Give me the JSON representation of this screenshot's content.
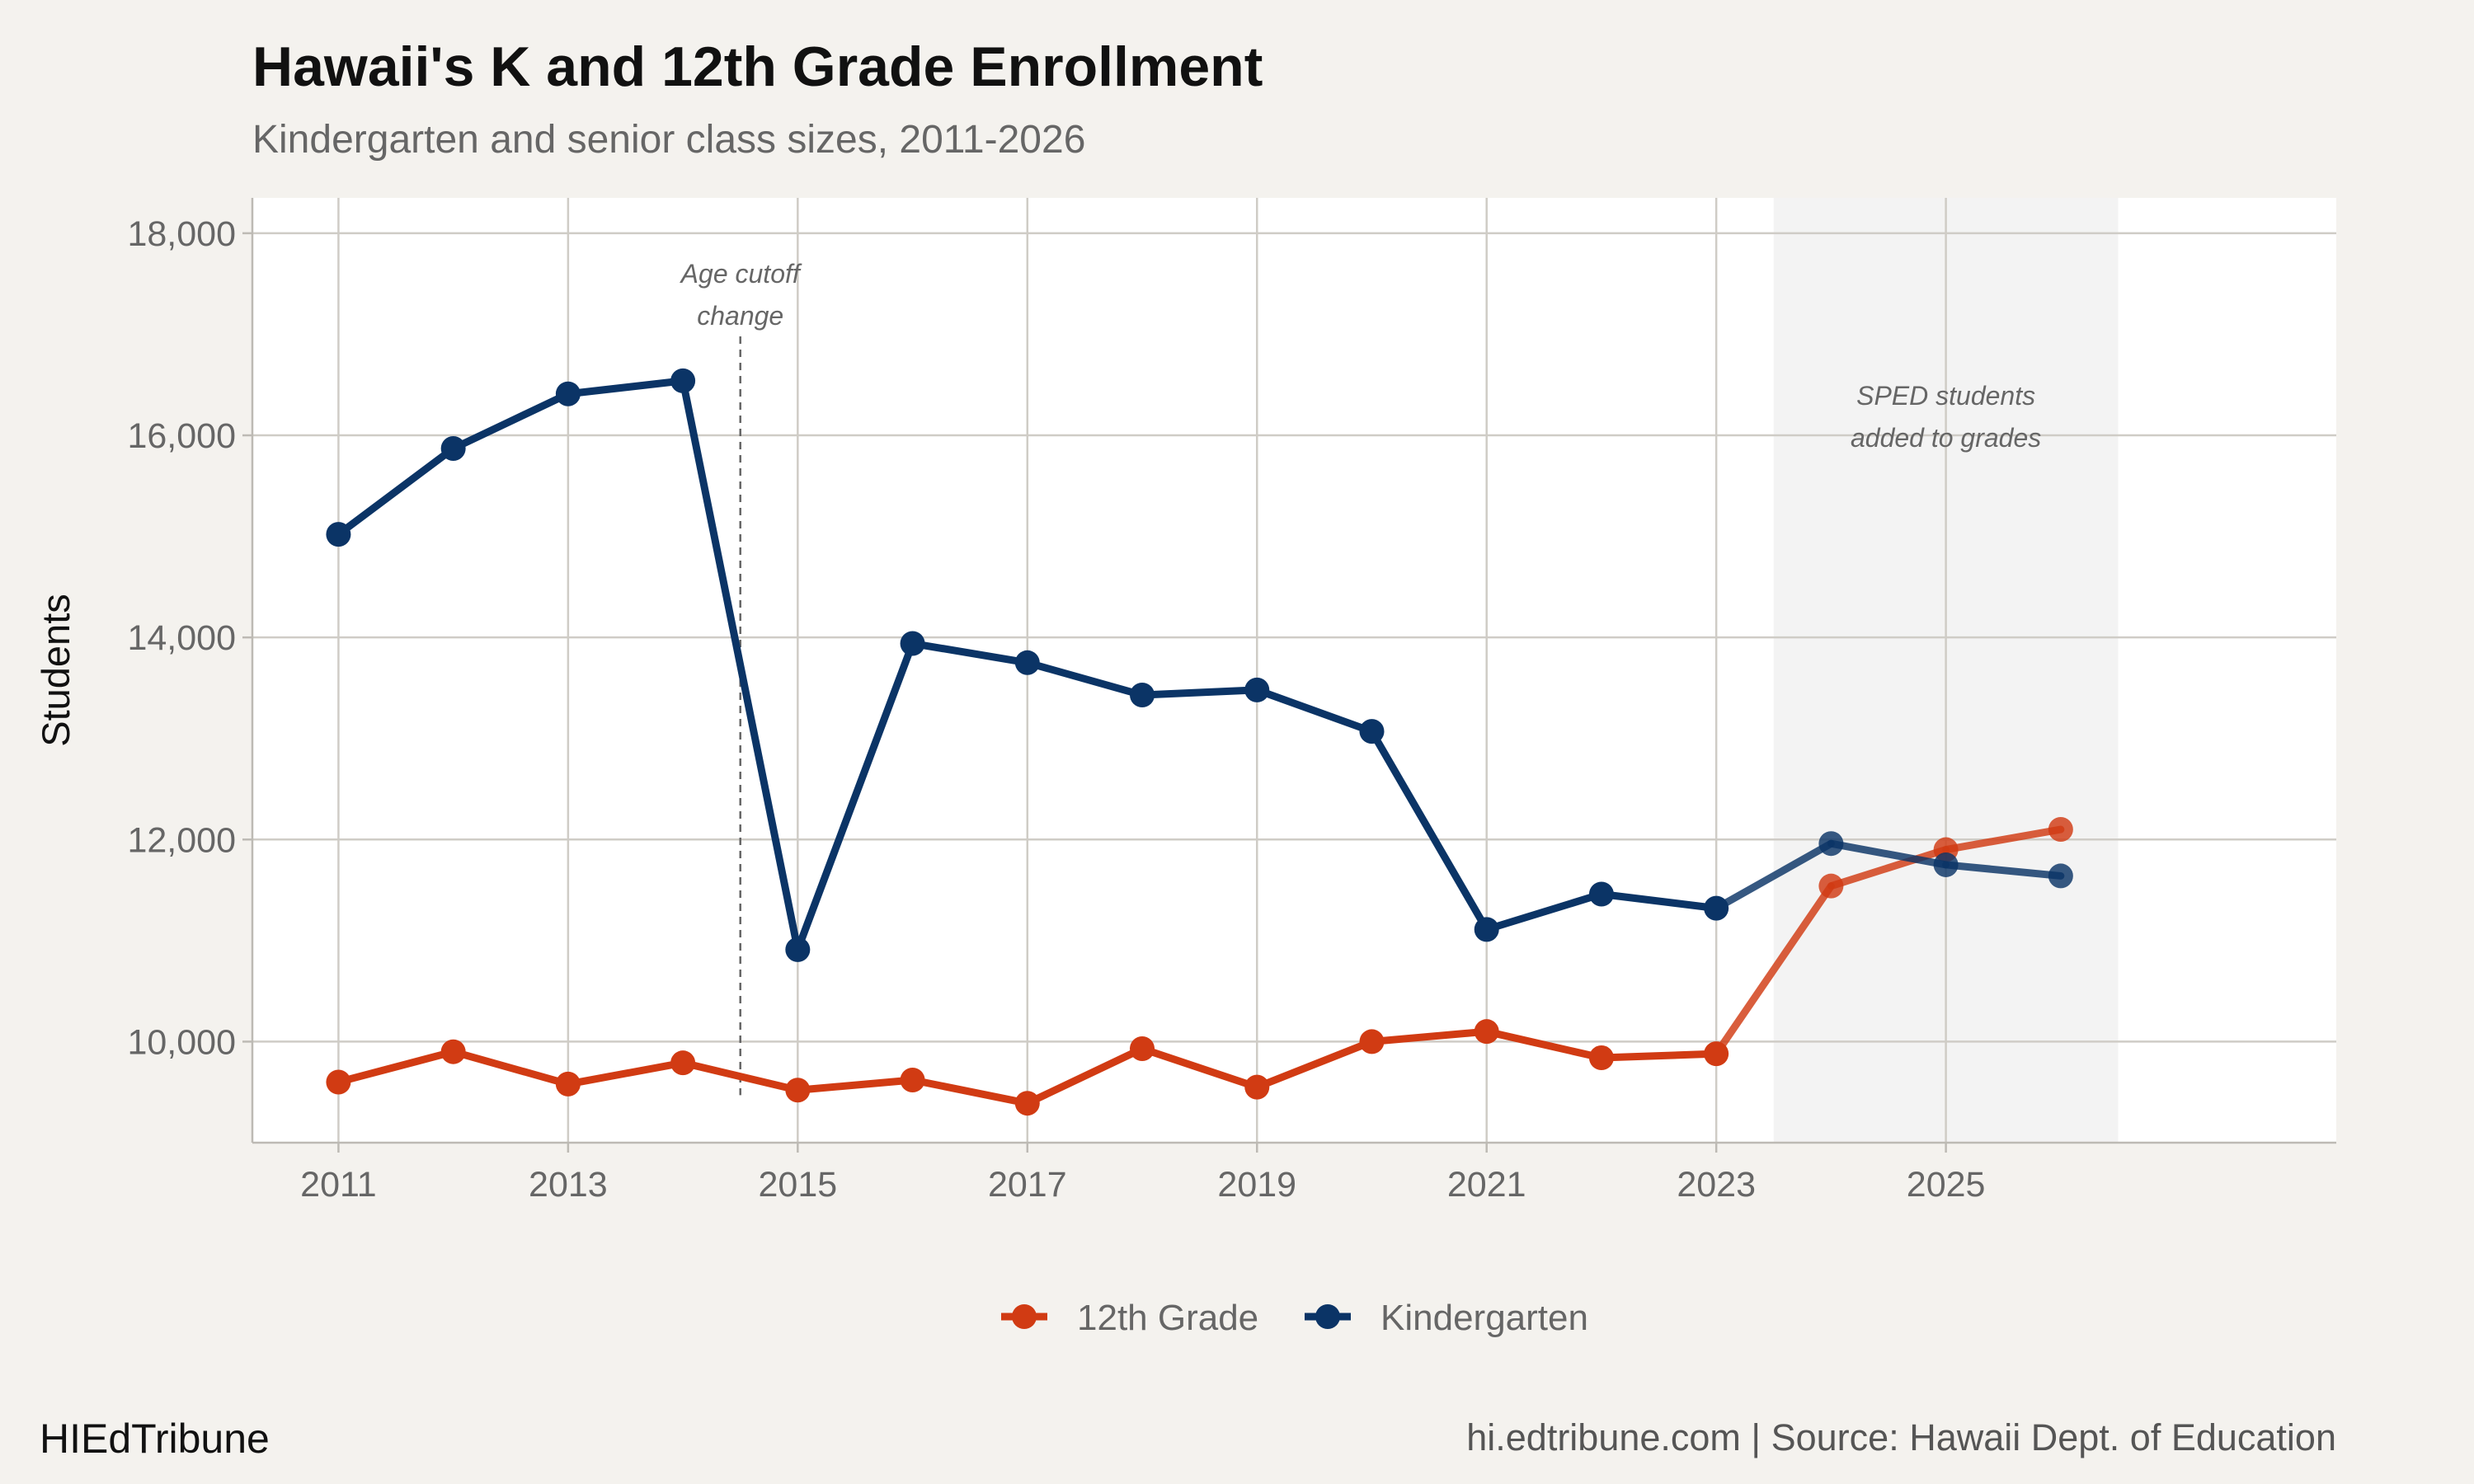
{
  "title": "Hawaii's K and 12th Grade Enrollment",
  "subtitle": "Kindergarten and senior class sizes, 2011-2026",
  "brand": "HIEdTribune",
  "source": "hi.edtribune.com | Source: Hawaii Dept. of Education",
  "chart_data": {
    "type": "line",
    "title": "Hawaii's K and 12th Grade Enrollment",
    "subtitle": "Kindergarten and senior class sizes, 2011-2026",
    "xlabel": "",
    "ylabel": "Students",
    "x": [
      2011,
      2012,
      2013,
      2014,
      2015,
      2016,
      2017,
      2018,
      2019,
      2020,
      2021,
      2022,
      2023,
      2024,
      2025,
      2026
    ],
    "x_ticks": [
      2011,
      2013,
      2015,
      2017,
      2019,
      2021,
      2023,
      2025
    ],
    "x_tick_labels": [
      "2011",
      "2013",
      "2015",
      "2017",
      "2019",
      "2021",
      "2023",
      "2025"
    ],
    "xlim": [
      2010.25,
      2028.4
    ],
    "ylim": [
      9000,
      18350
    ],
    "y_ticks": [
      10000,
      12000,
      14000,
      16000,
      18000
    ],
    "y_tick_labels": [
      "10,000",
      "12,000",
      "14,000",
      "16,000",
      "18,000"
    ],
    "grid": true,
    "legend_position": "bottom",
    "series": [
      {
        "name": "12th Grade",
        "color": "#d13b13",
        "values": [
          9600,
          9900,
          9580,
          9790,
          9520,
          9620,
          9390,
          9930,
          9550,
          10000,
          10100,
          9840,
          9880,
          11540,
          11900,
          12100
        ]
      },
      {
        "name": "Kindergarten",
        "color": "#0b3466",
        "values": [
          15020,
          15870,
          16410,
          16540,
          10910,
          13940,
          13750,
          13430,
          13480,
          13070,
          11110,
          11460,
          11320,
          11960,
          11750,
          11640
        ]
      }
    ],
    "shaded_region": {
      "x_from": 2023.5,
      "x_to": 2026.5,
      "label": [
        "SPED students",
        "added to grades"
      ]
    },
    "vertical_marker": {
      "x": 2014.5,
      "label": [
        "Age cutoff",
        "change"
      ]
    }
  }
}
